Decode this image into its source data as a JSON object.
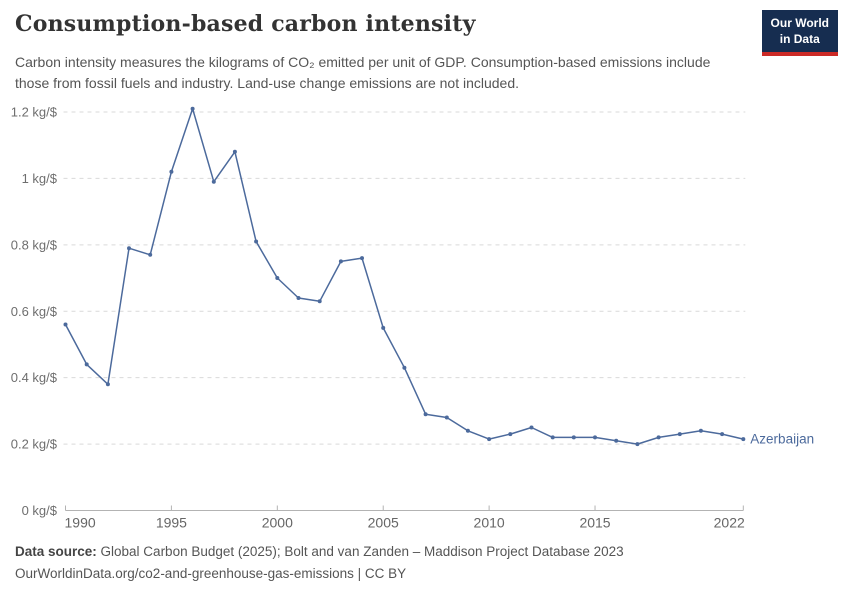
{
  "header": {
    "title": "Consumption-based carbon intensity",
    "subtitle": "Carbon intensity measures the kilograms of CO₂ emitted per unit of GDP. Consumption-based emissions include those from fossil fuels and industry. Land-use change emissions are not included.",
    "logo": {
      "line1": "Our World",
      "line2": "in Data",
      "bg_color": "#162d50",
      "accent_color": "#cc2a26"
    }
  },
  "chart_data": {
    "type": "line",
    "title": "Consumption-based carbon intensity",
    "xlabel": "",
    "ylabel": "kg/$",
    "xlim": [
      1990,
      2022
    ],
    "ylim": [
      0,
      1.25
    ],
    "grid": true,
    "legend_position": "end-of-line",
    "x": [
      1990,
      1991,
      1992,
      1993,
      1994,
      1995,
      1996,
      1997,
      1998,
      1999,
      2000,
      2001,
      2002,
      2003,
      2004,
      2005,
      2006,
      2007,
      2008,
      2009,
      2010,
      2011,
      2012,
      2013,
      2014,
      2015,
      2016,
      2017,
      2018,
      2019,
      2020,
      2021,
      2022
    ],
    "series": [
      {
        "name": "Azerbaijan",
        "color": "#4C6A9C",
        "values": [
          0.56,
          0.44,
          0.38,
          0.79,
          0.77,
          1.02,
          1.21,
          0.99,
          1.08,
          0.81,
          0.7,
          0.64,
          0.63,
          0.75,
          0.76,
          0.55,
          0.43,
          0.29,
          0.28,
          0.24,
          0.215,
          0.23,
          0.25,
          0.22,
          0.22,
          0.22,
          0.21,
          0.2,
          0.22,
          0.23,
          0.24,
          0.23,
          0.215
        ]
      }
    ],
    "x_ticks": [
      "1990",
      "1995",
      "2000",
      "2005",
      "2010",
      "2015",
      "2022"
    ],
    "y_ticks": [
      {
        "value": 0,
        "label": "0 kg/$"
      },
      {
        "value": 0.2,
        "label": "0.2 kg/$"
      },
      {
        "value": 0.4,
        "label": "0.4 kg/$"
      },
      {
        "value": 0.6,
        "label": "0.6 kg/$"
      },
      {
        "value": 0.8,
        "label": "0.8 kg/$"
      },
      {
        "value": 1,
        "label": "1 kg/$"
      },
      {
        "value": 1.2,
        "label": "1.2 kg/$"
      }
    ]
  },
  "footer": {
    "source_label": "Data source:",
    "source_text": " Global Carbon Budget (2025); Bolt and van Zanden – Maddison Project Database 2023",
    "license_text": "OurWorldinData.org/co2-and-greenhouse-gas-emissions | CC BY"
  },
  "colors": {
    "line": "#4C6A9C",
    "grid": "#d9d9d9",
    "axis": "#b3b3b3",
    "tick_label": "#666666",
    "title": "#333333",
    "subtitle": "#555555"
  }
}
